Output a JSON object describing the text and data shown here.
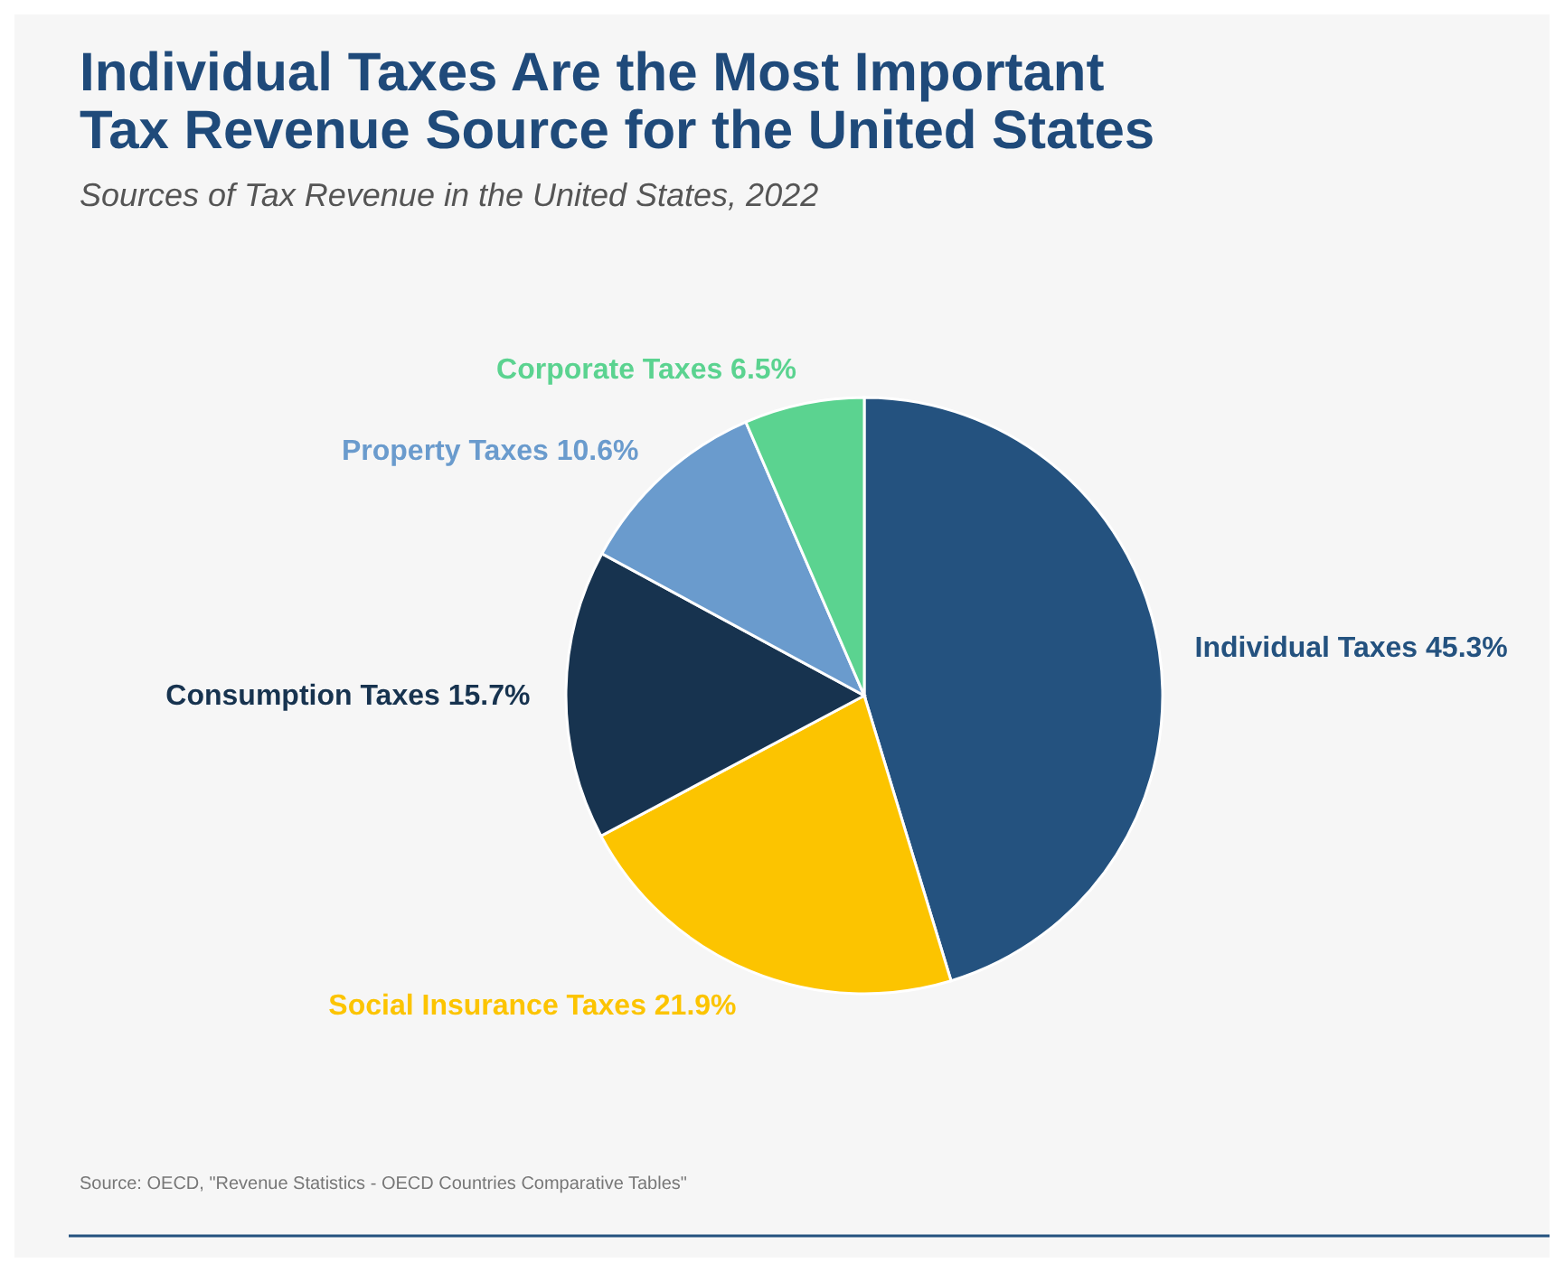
{
  "chart_data": {
    "type": "pie",
    "title": "Individual Taxes Are the Most Important Tax Revenue Source for the United States",
    "subtitle": "Sources of Tax Revenue in the United States, 2022",
    "categories": [
      "Individual Taxes",
      "Social Insurance Taxes",
      "Consumption Taxes",
      "Property Taxes",
      "Corporate Taxes"
    ],
    "values": [
      45.3,
      21.9,
      15.7,
      10.6,
      6.5
    ],
    "colors": [
      "#24527f",
      "#fcc400",
      "#17334f",
      "#6a9bcd",
      "#5bd390"
    ],
    "value_labels": [
      "45.3%",
      "21.9%",
      "15.7%",
      "10.6%",
      "6.5%"
    ],
    "annotations": [
      "Source: OECD, \"Revenue Statistics - OECD Countries Comparative Tables\""
    ]
  }
}
